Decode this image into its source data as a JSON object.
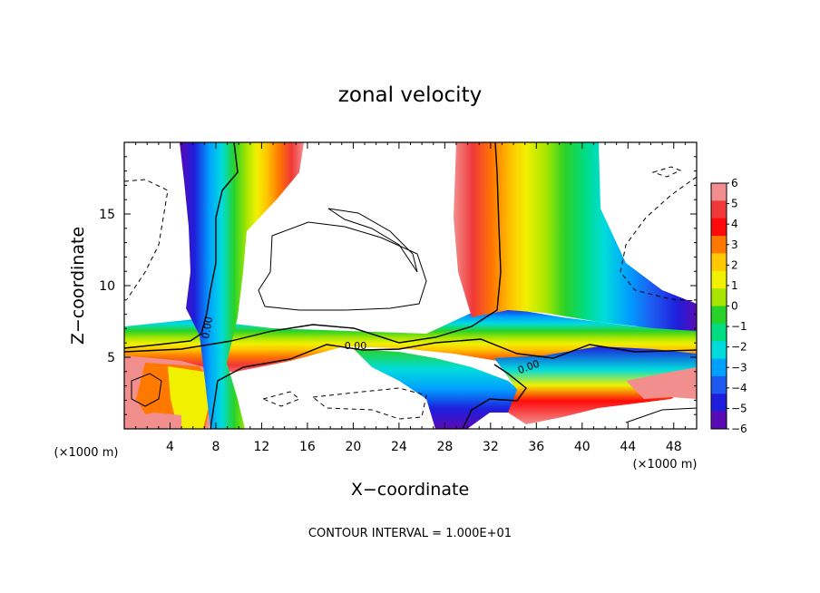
{
  "chart_data": {
    "type": "heatmap",
    "title": "zonal velocity",
    "xlabel": "X−coordinate",
    "ylabel": "Z−coordinate",
    "x_unit": "(×1000 m)",
    "y_unit": "(×1000 m)",
    "xlim": [
      0,
      50
    ],
    "ylim": [
      0,
      20
    ],
    "x_ticks": [
      "4",
      "8",
      "12",
      "16",
      "20",
      "24",
      "28",
      "32",
      "36",
      "40",
      "44",
      "48"
    ],
    "x_tick_values": [
      4,
      8,
      12,
      16,
      20,
      24,
      28,
      32,
      36,
      40,
      44,
      48
    ],
    "y_ticks": [
      "5",
      "10",
      "15"
    ],
    "y_tick_values": [
      5,
      10,
      15
    ],
    "colorbar_labels": [
      "6",
      "5",
      "4",
      "3",
      "2",
      "1",
      "0",
      "−1",
      "−2",
      "−3",
      "−4",
      "−5",
      "−6"
    ],
    "colorbar_values": [
      6,
      5,
      4,
      3,
      2,
      1,
      0,
      -1,
      -2,
      -3,
      -4,
      -5,
      -6
    ],
    "colorbar_colors": [
      "#f28e8e",
      "#f03838",
      "#ff0a0a",
      "#ff7800",
      "#ffc800",
      "#f0f000",
      "#a8e600",
      "#28d228",
      "#00dc82",
      "#00dcdc",
      "#00a0ff",
      "#1e5af0",
      "#1e1edc",
      "#5a0ab4"
    ],
    "zero_contour_labels": [
      "0.00",
      "0.00",
      "0.00"
    ],
    "contour_interval_text": "CONTOUR INTERVAL = 1.000E+01",
    "grid": false,
    "legend": "colorbar-right"
  }
}
